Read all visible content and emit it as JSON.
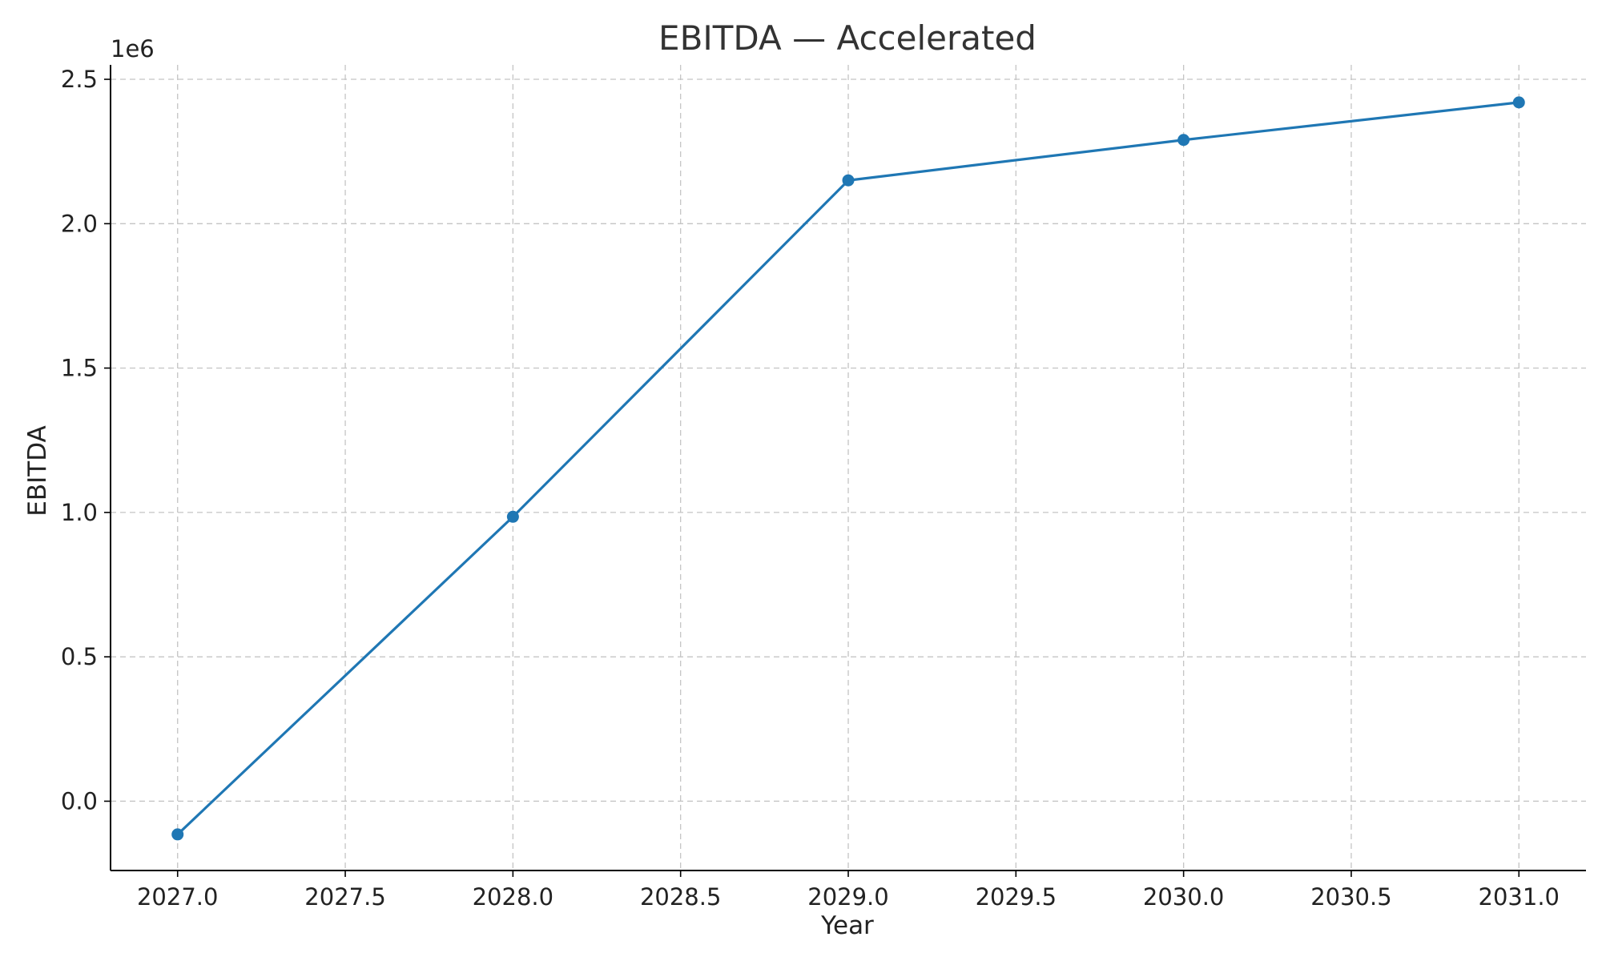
{
  "chart_data": {
    "type": "line",
    "title": "EBITDA — Accelerated",
    "xlabel": "Year",
    "ylabel": "EBITDA",
    "y_offset_label": "1e6",
    "xlim": [
      2026.8,
      2031.2
    ],
    "ylim": [
      -240000,
      2550000
    ],
    "x_ticks": [
      2027.0,
      2027.5,
      2028.0,
      2028.5,
      2029.0,
      2029.5,
      2030.0,
      2030.5,
      2031.0
    ],
    "x_tick_labels": [
      "2027.0",
      "2027.5",
      "2028.0",
      "2028.5",
      "2029.0",
      "2029.5",
      "2030.0",
      "2030.5",
      "2031.0"
    ],
    "y_ticks": [
      0,
      500000,
      1000000,
      1500000,
      2000000,
      2500000
    ],
    "y_tick_labels": [
      "0.0",
      "0.5",
      "1.0",
      "1.5",
      "2.0",
      "2.5"
    ],
    "grid": true,
    "series": [
      {
        "color": "#1f77b4",
        "marker": "circle",
        "x": [
          2027,
          2028,
          2029,
          2030,
          2031
        ],
        "y": [
          -115000,
          985000,
          2150000,
          2290000,
          2420000
        ]
      }
    ]
  }
}
